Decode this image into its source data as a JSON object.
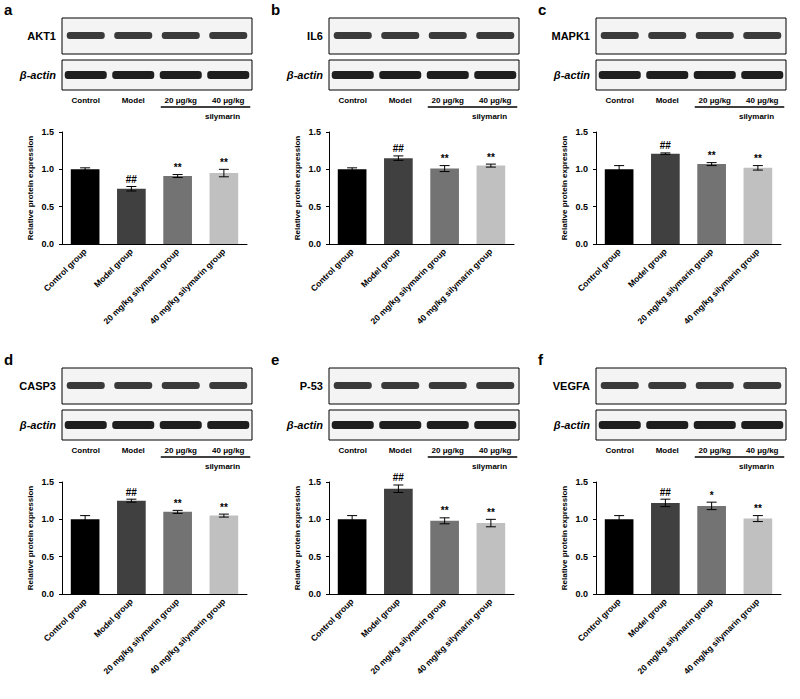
{
  "chart_data": [
    {
      "type": "bar",
      "panel": "a",
      "blot": {
        "target": "AKT1",
        "reference": "β-actin",
        "lanes": [
          "Control",
          "Model",
          "20 μg/kg",
          "40 μg/kg"
        ],
        "group_label": "silymarin"
      },
      "ylabel": "Relative protein expression",
      "categories": [
        "Control group",
        "Model group",
        "20 mg/kg silymarin group",
        "40 mg/kg silymarin group"
      ],
      "values": [
        1.0,
        0.74,
        0.91,
        0.95
      ],
      "errors": [
        0.02,
        0.03,
        0.02,
        0.05
      ],
      "annotations": [
        null,
        "##",
        "**",
        "**"
      ],
      "colors": [
        "#000000",
        "#404040",
        "#737373",
        "#c0c0c0"
      ],
      "ylim": [
        0,
        1.5
      ],
      "yticks": [
        {
          "value": 0,
          "label": "0.0"
        },
        0.5,
        {
          "value": 1,
          "label": "1.0"
        },
        1.5
      ],
      "grid": false
    },
    {
      "type": "bar",
      "panel": "b",
      "blot": {
        "target": "IL6",
        "reference": "β-actin",
        "lanes": [
          "Control",
          "Model",
          "20 μg/kg",
          "40 μg/kg"
        ],
        "group_label": "silymarin"
      },
      "ylabel": "Relative protein expression",
      "categories": [
        "Control group",
        "Model group",
        "20 mg/kg silymarin group",
        "40 mg/kg silymarin group"
      ],
      "values": [
        1.0,
        1.15,
        1.01,
        1.05
      ],
      "errors": [
        0.02,
        0.03,
        0.04,
        0.02
      ],
      "annotations": [
        null,
        "##",
        "**",
        "**"
      ],
      "colors": [
        "#000000",
        "#404040",
        "#737373",
        "#c0c0c0"
      ],
      "ylim": [
        0,
        1.5
      ],
      "yticks": [
        {
          "value": 0,
          "label": "0.0"
        },
        0.5,
        {
          "value": 1,
          "label": "1.0"
        },
        1.5
      ],
      "grid": false
    },
    {
      "type": "bar",
      "panel": "c",
      "blot": {
        "target": "MAPK1",
        "reference": "β-actin",
        "lanes": [
          "Control",
          "Model",
          "20 μg/kg",
          "40 μg/kg"
        ],
        "group_label": "silymarin"
      },
      "ylabel": "Relative protein expression",
      "categories": [
        "Control group",
        "Model group",
        "20 mg/kg silymarin group",
        "40 mg/kg silymarin group"
      ],
      "values": [
        1.0,
        1.21,
        1.07,
        1.02
      ],
      "errors": [
        0.05,
        0.01,
        0.02,
        0.03
      ],
      "annotations": [
        null,
        "##",
        "**",
        "**"
      ],
      "colors": [
        "#000000",
        "#404040",
        "#737373",
        "#c0c0c0"
      ],
      "ylim": [
        0,
        1.5
      ],
      "yticks": [
        {
          "value": 0,
          "label": "0.0"
        },
        0.5,
        {
          "value": 1,
          "label": "1.0"
        },
        1.5
      ],
      "grid": false
    },
    {
      "type": "bar",
      "panel": "d",
      "blot": {
        "target": "CASP3",
        "reference": "β-actin",
        "lanes": [
          "Control",
          "Model",
          "20 μg/kg",
          "40 μg/kg"
        ],
        "group_label": "silymarin"
      },
      "ylabel": "Relative protein expression",
      "categories": [
        "Control group",
        "Model group",
        "20 mg/kg silymarin group",
        "40 mg/kg silymarin group"
      ],
      "values": [
        1.0,
        1.25,
        1.1,
        1.05
      ],
      "errors": [
        0.05,
        0.02,
        0.02,
        0.02
      ],
      "annotations": [
        null,
        "##",
        "**",
        "**"
      ],
      "colors": [
        "#000000",
        "#404040",
        "#737373",
        "#c0c0c0"
      ],
      "ylim": [
        0,
        1.5
      ],
      "yticks": [
        {
          "value": 0,
          "label": "0.0"
        },
        0.5,
        {
          "value": 1,
          "label": "1.0"
        },
        1.5
      ],
      "grid": false
    },
    {
      "type": "bar",
      "panel": "e",
      "blot": {
        "target": "P-53",
        "reference": "β-actin",
        "lanes": [
          "Control",
          "Model",
          "20 μg/kg",
          "40 μg/kg"
        ],
        "group_label": "silymarin"
      },
      "ylabel": "Relative protein expression",
      "categories": [
        "Control group",
        "Model group",
        "20 mg/kg silymarin group",
        "40 mg/kg silymarin group"
      ],
      "values": [
        1.0,
        1.41,
        0.98,
        0.95
      ],
      "errors": [
        0.05,
        0.05,
        0.04,
        0.05
      ],
      "annotations": [
        null,
        "##",
        "**",
        "**"
      ],
      "colors": [
        "#000000",
        "#404040",
        "#737373",
        "#c0c0c0"
      ],
      "ylim": [
        0,
        1.5
      ],
      "yticks": [
        {
          "value": 0,
          "label": "0.0"
        },
        0.5,
        {
          "value": 1,
          "label": "1.0"
        },
        1.5
      ],
      "grid": false
    },
    {
      "type": "bar",
      "panel": "f",
      "blot": {
        "target": "VEGFA",
        "reference": "β-actin",
        "lanes": [
          "Control",
          "Model",
          "20 μg/kg",
          "40 μg/kg"
        ],
        "group_label": "silymarin"
      },
      "ylabel": "Relative protein expression",
      "categories": [
        "Control group",
        "Model group",
        "20 mg/kg silymarin group",
        "40 mg/kg silymarin group"
      ],
      "values": [
        1.0,
        1.22,
        1.18,
        1.01
      ],
      "errors": [
        0.05,
        0.05,
        0.05,
        0.04
      ],
      "annotations": [
        null,
        "##",
        "*",
        "**"
      ],
      "colors": [
        "#000000",
        "#404040",
        "#737373",
        "#c0c0c0"
      ],
      "ylim": [
        0,
        1.5
      ],
      "yticks": [
        {
          "value": 0,
          "label": "0.0"
        },
        0.5,
        {
          "value": 1,
          "label": "1.0"
        },
        1.5
      ],
      "grid": false
    }
  ]
}
